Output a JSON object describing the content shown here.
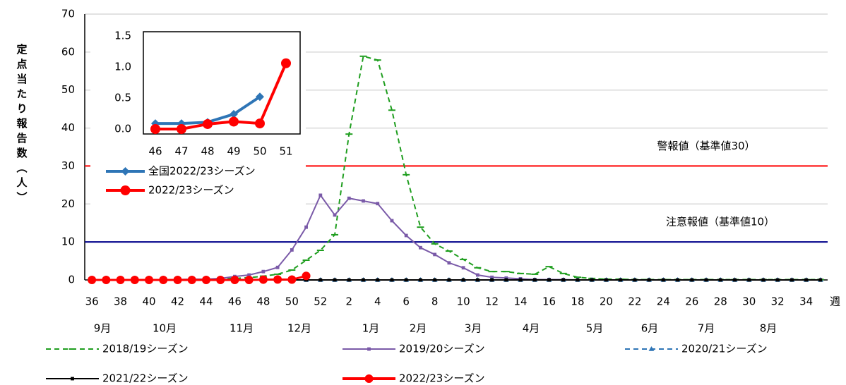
{
  "chart_data": [
    {
      "type": "line",
      "y_label": "定点当たり報告数（人）",
      "x_unit": "週",
      "categories": [
        "36",
        null,
        "38",
        null,
        "40",
        null,
        "42",
        null,
        "44",
        null,
        "46",
        null,
        "48",
        null,
        "50",
        null,
        "52",
        null,
        "2",
        null,
        "4",
        null,
        "6",
        null,
        "8",
        null,
        "10",
        null,
        "12",
        null,
        "14",
        null,
        "16",
        null,
        "18",
        null,
        "20",
        null,
        "22",
        null,
        "24",
        null,
        "26",
        null,
        "28",
        null,
        "30",
        null,
        "32",
        null,
        "34",
        null
      ],
      "month_labels": [
        "9月",
        "10月",
        "11月",
        "12月",
        "1月",
        "2月",
        "3月",
        "4月",
        "5月",
        "6月",
        "7月",
        "8月"
      ],
      "ylim": [
        0,
        70
      ],
      "yticks": [
        0,
        10,
        20,
        30,
        40,
        50,
        60,
        70
      ],
      "grid": true,
      "reference_lines": [
        {
          "value": 30,
          "label": "警報値（基準値30）",
          "color": "#ff0000"
        },
        {
          "value": 10,
          "label": "注意報値（基準値10）",
          "color": "#00008b"
        }
      ],
      "legend": "bottom",
      "series": [
        {
          "name": "2018/19シーズン",
          "color": "#1f9e1f",
          "marker": "dash",
          "dashed": true,
          "values": [
            0.1,
            0.1,
            0.1,
            0.1,
            0.1,
            0.1,
            0.1,
            0.1,
            0.2,
            0.3,
            0.4,
            0.6,
            1.0,
            1.5,
            2.6,
            5.2,
            7.8,
            11.9,
            38.4,
            58.9,
            57.9,
            44.7,
            27.7,
            13.9,
            9.5,
            7.6,
            5.4,
            3.2,
            2.2,
            2.2,
            1.7,
            1.5,
            3.5,
            1.7,
            0.7,
            0.4,
            0.2,
            0.2,
            0.1,
            0.1,
            0.1,
            0.1,
            0.1,
            0.1,
            0.1,
            0.1,
            0.1,
            0.1,
            0.1,
            0.1,
            0.1,
            0.1
          ]
        },
        {
          "name": "2019/20シーズン",
          "color": "#7a5aa8",
          "marker": "square",
          "dashed": false,
          "values": [
            0.1,
            0.1,
            0.1,
            0.1,
            0.1,
            0.1,
            0.1,
            0.2,
            0.2,
            0.4,
            0.9,
            1.3,
            2.2,
            3.3,
            7.9,
            13.9,
            22.3,
            17.1,
            21.5,
            20.8,
            20.1,
            15.6,
            11.7,
            8.5,
            6.7,
            4.5,
            3.2,
            1.3,
            0.7,
            0.5,
            0.3,
            0.1,
            0.1,
            0.1,
            0.0,
            0.0,
            0.0,
            0.0,
            0.0,
            0.0,
            0.0,
            0.0,
            0.0,
            0.0,
            0.0,
            0.0,
            0.0,
            0.0,
            0.0,
            0.0,
            0.0,
            0.0
          ]
        },
        {
          "name": "2020/21シーズン",
          "color": "#2e75b6",
          "marker": "triangle",
          "dashed": true,
          "values": [
            0,
            0,
            0,
            0,
            0,
            0,
            0,
            0,
            0,
            0,
            0,
            0,
            0,
            0,
            0,
            0,
            0,
            0,
            0,
            0,
            0,
            0,
            0,
            0,
            0,
            0,
            0,
            0,
            0,
            0,
            0,
            0,
            0,
            0,
            0,
            0,
            0,
            0,
            0,
            0,
            0,
            0,
            0,
            0,
            0,
            0,
            0,
            0,
            0,
            0,
            0,
            0
          ]
        },
        {
          "name": "2021/22シーズン",
          "color": "#000000",
          "marker": "square",
          "dashed": false,
          "values": [
            0,
            0,
            0,
            0,
            0,
            0,
            0,
            0,
            0,
            0,
            0,
            0,
            0,
            0,
            0,
            0,
            0,
            0,
            0,
            0,
            0,
            0,
            0,
            0,
            0,
            0,
            0,
            0,
            0,
            0,
            0,
            0,
            0,
            0,
            0,
            0,
            0,
            0,
            0,
            0,
            0,
            0,
            0,
            0,
            0,
            0,
            0,
            0,
            0,
            0,
            0,
            0
          ]
        },
        {
          "name": "2022/23シーズン",
          "color": "#ff0000",
          "marker": "circle",
          "dashed": false,
          "values": [
            0,
            0,
            0,
            0,
            0,
            0,
            0,
            0,
            0,
            0,
            0.0,
            0.0,
            0.08,
            0.12,
            0.09,
            1.06,
            null,
            null,
            null,
            null,
            null,
            null,
            null,
            null,
            null,
            null,
            null,
            null,
            null,
            null,
            null,
            null,
            null,
            null,
            null,
            null,
            null,
            null,
            null,
            null,
            null,
            null,
            null,
            null,
            null,
            null,
            null,
            null,
            null,
            null,
            null,
            null
          ]
        }
      ]
    },
    {
      "type": "line",
      "categories": [
        "46",
        "47",
        "48",
        "49",
        "50",
        "51"
      ],
      "ylim": [
        0,
        1.5
      ],
      "yticks": [
        {
          "value": 0,
          "label": "0.0"
        },
        0.5,
        {
          "value": 1,
          "label": "1.0"
        },
        1.5
      ],
      "legend": "bottom-left",
      "series": [
        {
          "name": "全国2022/23シーズン",
          "color": "#2e75b6",
          "marker": "diamond",
          "dashed": false,
          "values": [
            0.09,
            0.09,
            0.11,
            0.24,
            0.52,
            null
          ]
        },
        {
          "name": "2022/23シーズン",
          "color": "#ff0000",
          "marker": "circle",
          "dashed": false,
          "values": [
            0.0,
            0.0,
            0.08,
            0.12,
            0.09,
            1.06
          ]
        }
      ]
    }
  ]
}
